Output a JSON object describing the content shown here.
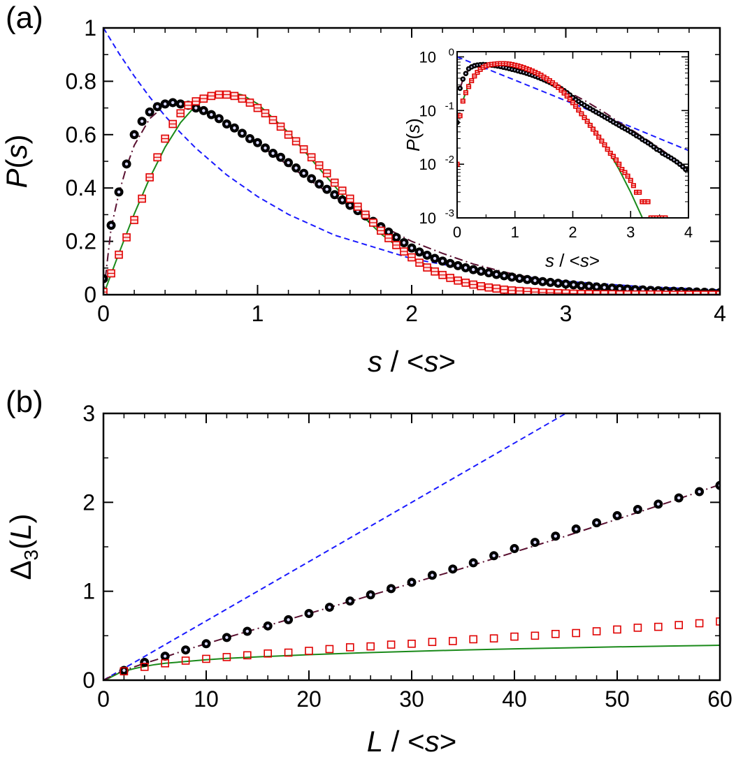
{
  "figure": {
    "panel_a_label": "(a)",
    "panel_b_label": "(b)"
  },
  "chart_data": [
    {
      "id": "panel-a",
      "type": "line",
      "xlabel_italic": "s",
      "xlabel_rest": " / <",
      "xlabel_italic2": "s",
      "xlabel_end": ">",
      "ylabel_italic": "P",
      "ylabel_rest": "(",
      "ylabel_italic2": "s",
      "ylabel_end": ")",
      "xlim": [
        0,
        4
      ],
      "ylim": [
        0,
        1
      ],
      "xticks": [
        0,
        1,
        2,
        3,
        4
      ],
      "xtick_labels": [
        "0",
        "1",
        "2",
        "3",
        "4"
      ],
      "yticks": [
        0,
        0.2,
        0.4,
        0.6,
        0.8,
        1
      ],
      "ytick_labels": [
        "0",
        "0.2",
        "0.4",
        "0.6",
        "0.8",
        "1"
      ],
      "grid": false,
      "series": [
        {
          "style": "dashed",
          "color": "#1a1aff",
          "curve": "poisson",
          "x": [
            0,
            0.1,
            0.2,
            0.3,
            0.4,
            0.5,
            0.6,
            0.8,
            1.0,
            1.2,
            1.5,
            2.0,
            2.5,
            3.0,
            3.5,
            4.0
          ],
          "y": [
            1,
            0.905,
            0.819,
            0.741,
            0.67,
            0.607,
            0.549,
            0.449,
            0.368,
            0.301,
            0.223,
            0.135,
            0.082,
            0.05,
            0.03,
            0.018
          ]
        },
        {
          "style": "solid",
          "color": "#1a8a1a",
          "curve": "goe",
          "x": [
            0,
            0.1,
            0.2,
            0.3,
            0.4,
            0.5,
            0.6,
            0.7,
            0.8,
            0.9,
            1.0,
            1.2,
            1.4,
            1.6,
            1.8,
            2.0,
            2.2,
            2.4,
            2.6,
            2.8,
            3.0,
            3.5,
            4.0
          ],
          "y": [
            0,
            0.155,
            0.303,
            0.437,
            0.553,
            0.645,
            0.71,
            0.749,
            0.761,
            0.749,
            0.716,
            0.608,
            0.473,
            0.341,
            0.228,
            0.14,
            0.08,
            0.041,
            0.019,
            0.008,
            0.003,
            0.0002,
            0.0
          ]
        },
        {
          "style": "dashdot",
          "color": "#5a1030",
          "curve": "intermediate",
          "x": [
            0,
            0.05,
            0.1,
            0.15,
            0.2,
            0.3,
            0.4,
            0.5,
            0.6,
            0.7,
            0.8,
            0.9,
            1.0,
            1.2,
            1.4,
            1.6,
            1.8,
            2.0,
            2.2,
            2.4,
            2.6,
            2.8,
            3.0,
            3.5,
            4.0
          ],
          "y": [
            0,
            0.25,
            0.38,
            0.48,
            0.56,
            0.66,
            0.71,
            0.72,
            0.705,
            0.68,
            0.645,
            0.605,
            0.565,
            0.485,
            0.405,
            0.33,
            0.26,
            0.2,
            0.155,
            0.115,
            0.085,
            0.06,
            0.045,
            0.02,
            0.008
          ]
        },
        {
          "style": "markers-circle-filled",
          "color": "#000000",
          "name": "",
          "x": [
            0,
            0.05,
            0.1,
            0.15,
            0.2,
            0.25,
            0.3,
            0.35,
            0.4,
            0.45,
            0.5,
            0.55,
            0.6,
            0.65,
            0.7,
            0.75,
            0.8,
            0.85,
            0.9,
            0.95,
            1.0,
            1.05,
            1.1,
            1.15,
            1.2,
            1.25,
            1.3,
            1.35,
            1.4,
            1.45,
            1.5,
            1.55,
            1.6,
            1.65,
            1.7,
            1.75,
            1.8,
            1.85,
            1.9,
            1.95,
            2.0,
            2.05,
            2.1,
            2.15,
            2.2,
            2.25,
            2.3,
            2.35,
            2.4,
            2.45,
            2.5,
            2.55,
            2.6,
            2.65,
            2.7,
            2.75,
            2.8,
            2.85,
            2.9,
            2.95,
            3.0,
            3.05,
            3.1,
            3.15,
            3.2,
            3.25,
            3.3,
            3.35,
            3.4,
            3.45,
            3.5,
            3.55,
            3.6,
            3.65,
            3.7,
            3.75,
            3.8,
            3.85,
            3.9,
            3.95,
            4.0
          ],
          "y": [
            0.06,
            0.26,
            0.385,
            0.49,
            0.6,
            0.65,
            0.685,
            0.705,
            0.715,
            0.72,
            0.715,
            0.71,
            0.7,
            0.69,
            0.675,
            0.66,
            0.64,
            0.625,
            0.605,
            0.585,
            0.57,
            0.55,
            0.53,
            0.515,
            0.495,
            0.475,
            0.455,
            0.435,
            0.415,
            0.395,
            0.375,
            0.355,
            0.335,
            0.315,
            0.295,
            0.275,
            0.255,
            0.235,
            0.215,
            0.195,
            0.175,
            0.16,
            0.148,
            0.136,
            0.126,
            0.117,
            0.109,
            0.101,
            0.094,
            0.088,
            0.082,
            0.076,
            0.071,
            0.066,
            0.061,
            0.057,
            0.053,
            0.049,
            0.046,
            0.043,
            0.04,
            0.037,
            0.034,
            0.032,
            0.029,
            0.027,
            0.025,
            0.023,
            0.021,
            0.019,
            0.018,
            0.016,
            0.015,
            0.014,
            0.013,
            0.012,
            0.011,
            0.01,
            0.009,
            0.008,
            0.008
          ]
        },
        {
          "style": "markers-square-red",
          "color": "#e00000",
          "name": "",
          "x": [
            0,
            0.05,
            0.1,
            0.15,
            0.2,
            0.25,
            0.3,
            0.35,
            0.4,
            0.45,
            0.5,
            0.55,
            0.6,
            0.65,
            0.7,
            0.75,
            0.8,
            0.85,
            0.9,
            0.95,
            1.0,
            1.05,
            1.1,
            1.15,
            1.2,
            1.25,
            1.3,
            1.35,
            1.4,
            1.45,
            1.5,
            1.55,
            1.6,
            1.65,
            1.7,
            1.75,
            1.8,
            1.85,
            1.9,
            1.95,
            2.0,
            2.05,
            2.1,
            2.15,
            2.2,
            2.25,
            2.3,
            2.35,
            2.4,
            2.45,
            2.5,
            2.55,
            2.6,
            2.65,
            2.7,
            2.75,
            2.8,
            2.85,
            2.9,
            2.95,
            3.0,
            3.05,
            3.1,
            3.15,
            3.2,
            3.25,
            3.3,
            3.35,
            3.4,
            3.45,
            3.5,
            3.55,
            3.6,
            3.65,
            3.7,
            3.75,
            3.8,
            3.85,
            3.9,
            3.95,
            4.0
          ],
          "y": [
            0.01,
            0.08,
            0.15,
            0.215,
            0.28,
            0.36,
            0.44,
            0.515,
            0.585,
            0.64,
            0.68,
            0.71,
            0.725,
            0.735,
            0.745,
            0.75,
            0.75,
            0.745,
            0.735,
            0.72,
            0.7,
            0.68,
            0.655,
            0.63,
            0.6,
            0.575,
            0.545,
            0.515,
            0.485,
            0.455,
            0.42,
            0.39,
            0.36,
            0.33,
            0.3,
            0.27,
            0.24,
            0.212,
            0.186,
            0.162,
            0.14,
            0.12,
            0.102,
            0.087,
            0.074,
            0.063,
            0.053,
            0.045,
            0.038,
            0.032,
            0.027,
            0.023,
            0.019,
            0.016,
            0.014,
            0.012,
            0.01,
            0.008,
            0.007,
            0.006,
            0.005,
            0.004,
            0.003,
            0.003,
            0.002,
            0.002,
            0.002,
            0.001,
            0.001,
            0.001,
            0.001,
            0.001,
            0.001,
            0.0,
            0.0,
            0.0,
            0.0,
            0.0,
            0.0,
            0.0,
            0.0
          ]
        }
      ],
      "inset": {
        "type": "line",
        "yscale": "log",
        "xlabel_italic": "s",
        "xlabel_rest": " / <",
        "xlabel_italic2": "s",
        "xlabel_end": ">",
        "ylabel_italic": "P",
        "ylabel_rest": "(",
        "ylabel_italic2": "s",
        "ylabel_end": ")",
        "xlim": [
          0,
          4
        ],
        "ylim": [
          0.001,
          1.25
        ],
        "xticks": [
          0,
          1,
          2,
          3,
          4
        ],
        "xtick_labels": [
          "0",
          "1",
          "2",
          "3",
          "4"
        ],
        "yticks": [
          0.001,
          0.01,
          0.1,
          1
        ],
        "ytick_base": [
          "10",
          "10",
          "10",
          "10"
        ],
        "ytick_exp": [
          "-3",
          "-2",
          "-1",
          "0"
        ]
      }
    },
    {
      "id": "panel-b",
      "type": "line",
      "xlabel_italic": "L",
      "xlabel_rest": " / <",
      "xlabel_italic2": "s",
      "xlabel_end": ">",
      "ylabel_delta": "Δ",
      "ylabel_sub": "3",
      "ylabel_rest": "(",
      "ylabel_italic": "L",
      "ylabel_end": ")",
      "xlim": [
        0,
        60
      ],
      "ylim": [
        0,
        3
      ],
      "xticks": [
        0,
        10,
        20,
        30,
        40,
        50,
        60
      ],
      "xtick_labels": [
        "0",
        "10",
        "20",
        "30",
        "40",
        "50",
        "60"
      ],
      "yticks": [
        0,
        1,
        2,
        3
      ],
      "ytick_labels": [
        "0",
        "1",
        "2",
        "3"
      ],
      "grid": false,
      "series": [
        {
          "style": "dashed",
          "color": "#1a1aff",
          "curve": "poisson",
          "x": [
            0,
            45
          ],
          "y": [
            0,
            3
          ]
        },
        {
          "style": "solid",
          "color": "#1a8a1a",
          "curve": "goe",
          "x": [
            0,
            0.5,
            1,
            1.5,
            2,
            3,
            4,
            5,
            6,
            8,
            10,
            12,
            15,
            20,
            25,
            30,
            35,
            40,
            45,
            50,
            55,
            60
          ],
          "y": [
            0,
            0.02,
            0.05,
            0.08,
            0.1,
            0.13,
            0.155,
            0.175,
            0.19,
            0.21,
            0.23,
            0.245,
            0.262,
            0.287,
            0.307,
            0.324,
            0.34,
            0.353,
            0.364,
            0.375,
            0.384,
            0.393
          ]
        },
        {
          "style": "dashdot",
          "color": "#5a1030",
          "curve": "intermediate",
          "x": [
            0,
            1,
            2,
            3,
            4,
            6,
            8,
            10,
            12,
            15,
            20,
            25,
            30,
            35,
            40,
            45,
            50,
            55,
            60
          ],
          "y": [
            0,
            0.06,
            0.11,
            0.15,
            0.19,
            0.26,
            0.34,
            0.41,
            0.48,
            0.58,
            0.75,
            0.92,
            1.09,
            1.26,
            1.44,
            1.62,
            1.81,
            2.0,
            2.2
          ]
        },
        {
          "style": "markers-circle-filled",
          "color": "#000000",
          "name": "",
          "x": [
            2,
            4,
            6,
            8,
            10,
            12,
            14,
            16,
            18,
            20,
            22,
            24,
            26,
            28,
            30,
            32,
            34,
            36,
            38,
            40,
            42,
            44,
            46,
            48,
            50,
            52,
            54,
            56,
            58,
            60
          ],
          "y": [
            0.11,
            0.2,
            0.27,
            0.34,
            0.41,
            0.48,
            0.55,
            0.61,
            0.68,
            0.75,
            0.82,
            0.89,
            0.96,
            1.03,
            1.1,
            1.18,
            1.25,
            1.32,
            1.4,
            1.48,
            1.55,
            1.62,
            1.7,
            1.77,
            1.85,
            1.92,
            1.98,
            2.05,
            2.12,
            2.19
          ]
        },
        {
          "style": "markers-square-open",
          "color": "#e00000",
          "name": "",
          "x": [
            2,
            4,
            6,
            8,
            10,
            12,
            14,
            16,
            18,
            20,
            22,
            24,
            26,
            28,
            30,
            32,
            34,
            36,
            38,
            40,
            42,
            44,
            46,
            48,
            50,
            52,
            54,
            56,
            58,
            60
          ],
          "y": [
            0.1,
            0.15,
            0.19,
            0.22,
            0.24,
            0.26,
            0.28,
            0.3,
            0.31,
            0.33,
            0.35,
            0.37,
            0.38,
            0.4,
            0.41,
            0.43,
            0.44,
            0.46,
            0.47,
            0.49,
            0.5,
            0.52,
            0.53,
            0.55,
            0.57,
            0.59,
            0.6,
            0.62,
            0.64,
            0.66
          ]
        }
      ]
    }
  ]
}
